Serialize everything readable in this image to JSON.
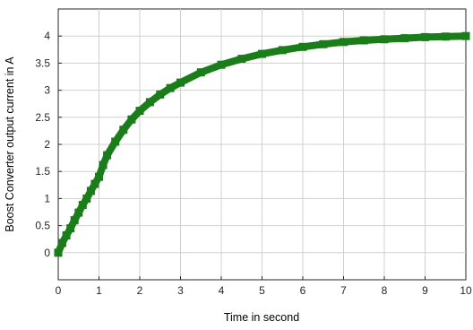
{
  "chart_data": {
    "type": "line",
    "xlabel": "Time in second",
    "ylabel": "Boost Converter output current in A",
    "xlim": [
      0,
      10
    ],
    "ylim": [
      -0.5,
      4.5
    ],
    "x_ticks": [
      0,
      1,
      2,
      3,
      4,
      5,
      6,
      7,
      8,
      9,
      10
    ],
    "y_ticks": [
      0,
      0.5,
      1,
      1.5,
      2,
      2.5,
      3,
      3.5,
      4
    ],
    "grid": true,
    "series": [
      {
        "color": "#1a7d1a",
        "x": [
          0,
          0.1,
          0.2,
          0.3,
          0.4,
          0.5,
          0.6,
          0.7,
          0.8,
          0.9,
          1.0,
          1.1,
          1.2,
          1.4,
          1.6,
          1.8,
          2.0,
          2.25,
          2.5,
          2.75,
          3.0,
          3.5,
          4.0,
          4.5,
          5.0,
          5.5,
          6.0,
          6.5,
          7.0,
          7.5,
          8.0,
          8.5,
          9.0,
          9.5,
          10.0
        ],
        "y": [
          0,
          0.18,
          0.32,
          0.45,
          0.6,
          0.74,
          0.88,
          1.0,
          1.14,
          1.27,
          1.4,
          1.62,
          1.8,
          2.05,
          2.27,
          2.46,
          2.62,
          2.78,
          2.92,
          3.04,
          3.14,
          3.33,
          3.47,
          3.58,
          3.67,
          3.74,
          3.8,
          3.85,
          3.89,
          3.92,
          3.94,
          3.96,
          3.98,
          3.99,
          4.0
        ]
      }
    ]
  }
}
